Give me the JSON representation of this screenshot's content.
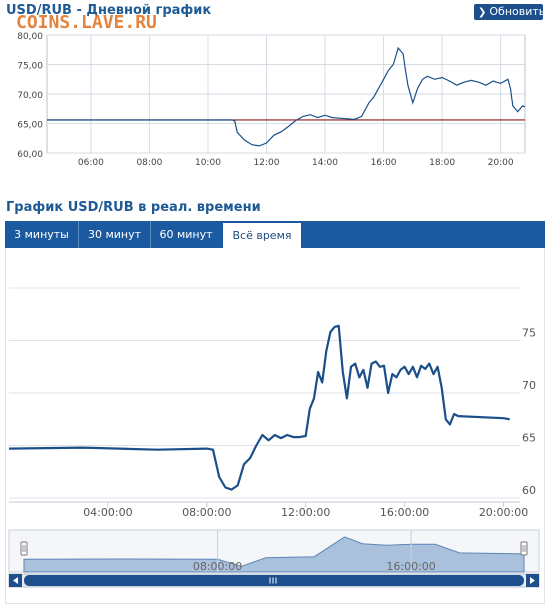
{
  "header": {
    "title": "USD/RUB - Дневной график",
    "refresh_label": "Обновить"
  },
  "watermark": {
    "text": "COINS.LAVE.RU"
  },
  "section2": {
    "title": "График USD/RUB в реал. времени"
  },
  "tabs": [
    {
      "label": "3 минуты",
      "active": false
    },
    {
      "label": "30 минут",
      "active": false
    },
    {
      "label": "60 минут",
      "active": false
    },
    {
      "label": "Всё время",
      "active": true
    }
  ],
  "colors": {
    "line": "#1a4f8a",
    "reference": "#8b1a1a",
    "tab_bar": "#1c5aa0",
    "navigator_fill": "#a9c1dc"
  },
  "chart_data": [
    {
      "type": "line",
      "title": "USD/RUB - Дневной график",
      "xlabel": "",
      "ylabel": "",
      "xlim": [
        "04:30",
        "20:50"
      ],
      "ylim": [
        60,
        80
      ],
      "yticks": [
        "60,00",
        "65,00",
        "70,00",
        "75,00",
        "80,00"
      ],
      "xticks": [
        "06:00",
        "08:00",
        "10:00",
        "12:00",
        "14:00",
        "16:00",
        "18:00",
        "20:00"
      ],
      "grid": true,
      "reference_line": 65.6,
      "series": [
        {
          "x": [
            "04:30",
            "10:50",
            "10:55",
            "11:00",
            "11:15",
            "11:30",
            "11:45",
            "12:00",
            "12:15",
            "12:30",
            "12:45",
            "13:00",
            "13:15",
            "13:30",
            "13:45",
            "14:00",
            "14:15",
            "14:30",
            "14:45",
            "15:00",
            "15:15",
            "15:30",
            "15:40",
            "15:50",
            "16:00",
            "16:10",
            "16:20",
            "16:30",
            "16:40",
            "16:45",
            "16:50",
            "17:00",
            "17:10",
            "17:20",
            "17:30",
            "17:45",
            "18:00",
            "18:15",
            "18:30",
            "18:45",
            "19:00",
            "19:15",
            "19:30",
            "19:45",
            "20:00",
            "20:15",
            "20:20",
            "20:25",
            "20:30",
            "20:35",
            "20:45",
            "20:50"
          ],
          "y": [
            65.6,
            65.6,
            65.4,
            63.5,
            62.2,
            61.4,
            61.2,
            61.7,
            63.0,
            63.6,
            64.5,
            65.5,
            66.2,
            66.5,
            66.0,
            66.4,
            66.0,
            65.9,
            65.8,
            65.7,
            66.2,
            68.5,
            69.5,
            71.0,
            72.5,
            74.0,
            75.0,
            77.8,
            76.8,
            74.0,
            71.5,
            68.5,
            71.0,
            72.5,
            73.0,
            72.5,
            72.8,
            72.2,
            71.5,
            72.0,
            72.3,
            72.0,
            71.5,
            72.2,
            71.8,
            72.5,
            71.0,
            68.0,
            67.5,
            67.0,
            68.0,
            67.8
          ]
        }
      ]
    },
    {
      "type": "line",
      "title": "",
      "xlabel": "",
      "ylabel": "",
      "xlim": [
        "00:00",
        "20:40"
      ],
      "ylim": [
        60,
        80
      ],
      "yticks": [
        "60",
        "65",
        "70",
        "75"
      ],
      "xticks": [
        "04:00:00",
        "08:00:00",
        "12:00:00",
        "16:00:00",
        "20:00:00"
      ],
      "grid": true,
      "series": [
        {
          "x": [
            "00:00",
            "03:00",
            "06:00",
            "08:00",
            "08:15",
            "08:30",
            "08:45",
            "09:00",
            "09:15",
            "09:30",
            "09:45",
            "10:00",
            "10:15",
            "10:30",
            "10:45",
            "11:00",
            "11:15",
            "11:30",
            "11:45",
            "12:00",
            "12:10",
            "12:20",
            "12:30",
            "12:40",
            "12:50",
            "13:00",
            "13:10",
            "13:20",
            "13:30",
            "13:40",
            "13:50",
            "14:00",
            "14:10",
            "14:20",
            "14:30",
            "14:40",
            "14:50",
            "15:00",
            "15:10",
            "15:20",
            "15:30",
            "15:40",
            "15:50",
            "16:00",
            "16:10",
            "16:20",
            "16:30",
            "16:40",
            "16:50",
            "17:00",
            "17:10",
            "17:20",
            "17:30",
            "17:40",
            "17:50",
            "18:00",
            "18:10",
            "20:00",
            "20:15"
          ],
          "y": [
            64.7,
            64.8,
            64.6,
            64.7,
            64.6,
            62.0,
            61.0,
            60.8,
            61.2,
            63.2,
            63.8,
            65.0,
            66.0,
            65.5,
            66.0,
            65.7,
            66.0,
            65.8,
            65.8,
            65.9,
            68.5,
            69.5,
            72.0,
            71.0,
            74.0,
            75.8,
            76.3,
            76.4,
            72.0,
            69.5,
            72.5,
            72.8,
            71.5,
            72.2,
            70.5,
            72.8,
            73.0,
            72.5,
            72.6,
            70.0,
            71.8,
            71.5,
            72.2,
            72.5,
            71.8,
            72.5,
            71.5,
            72.6,
            72.3,
            72.8,
            71.8,
            72.5,
            70.5,
            67.5,
            67.0,
            68.0,
            67.8,
            67.6,
            67.5
          ]
        }
      ],
      "navigator": {
        "x": [
          "00:00",
          "04:00",
          "08:00",
          "09:00",
          "10:00",
          "12:00",
          "13:15",
          "14:00",
          "15:00",
          "16:00",
          "17:00",
          "18:00",
          "20:40"
        ],
        "y": [
          64.7,
          64.8,
          64.7,
          61.0,
          65.5,
          66.0,
          76.4,
          72.8,
          72.0,
          72.5,
          72.5,
          68.0,
          67.5
        ],
        "xticks": [
          "08:00:00",
          "16:00:00"
        ]
      }
    }
  ]
}
